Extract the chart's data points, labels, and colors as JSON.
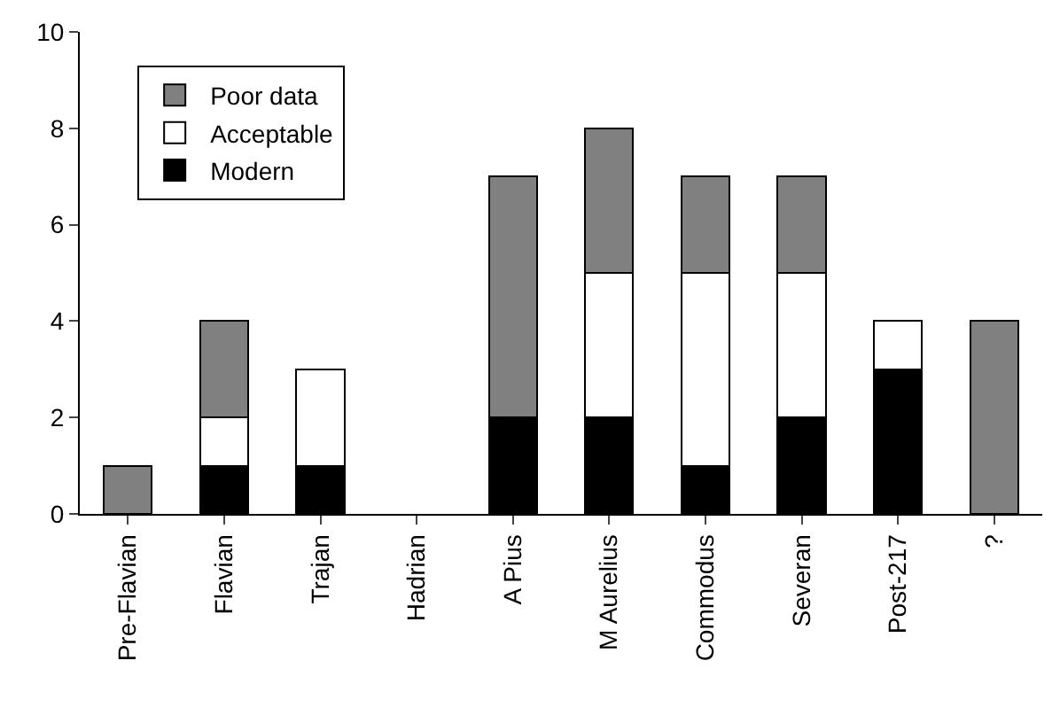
{
  "chart_data": {
    "type": "bar",
    "stacked": true,
    "categories": [
      "Pre-Flavian",
      "Flavian",
      "Trajan",
      "Hadrian",
      "A Pius",
      "M Aurelius",
      "Commodus",
      "Severan",
      "Post-217",
      "?"
    ],
    "series": [
      {
        "name": "Modern",
        "color": "#000000",
        "values": [
          0,
          1,
          1,
          0,
          2,
          2,
          1,
          2,
          3,
          0
        ]
      },
      {
        "name": "Acceptable",
        "color": "#ffffff",
        "values": [
          0,
          1,
          2,
          0,
          0,
          3,
          4,
          3,
          1,
          0
        ]
      },
      {
        "name": "Poor data",
        "color": "#808080",
        "values": [
          1,
          2,
          0,
          0,
          5,
          3,
          2,
          2,
          0,
          4
        ]
      }
    ],
    "ylim": [
      0,
      10
    ],
    "yticks": [
      0,
      2,
      4,
      6,
      8,
      10
    ],
    "grid": false,
    "legend": "top left"
  }
}
